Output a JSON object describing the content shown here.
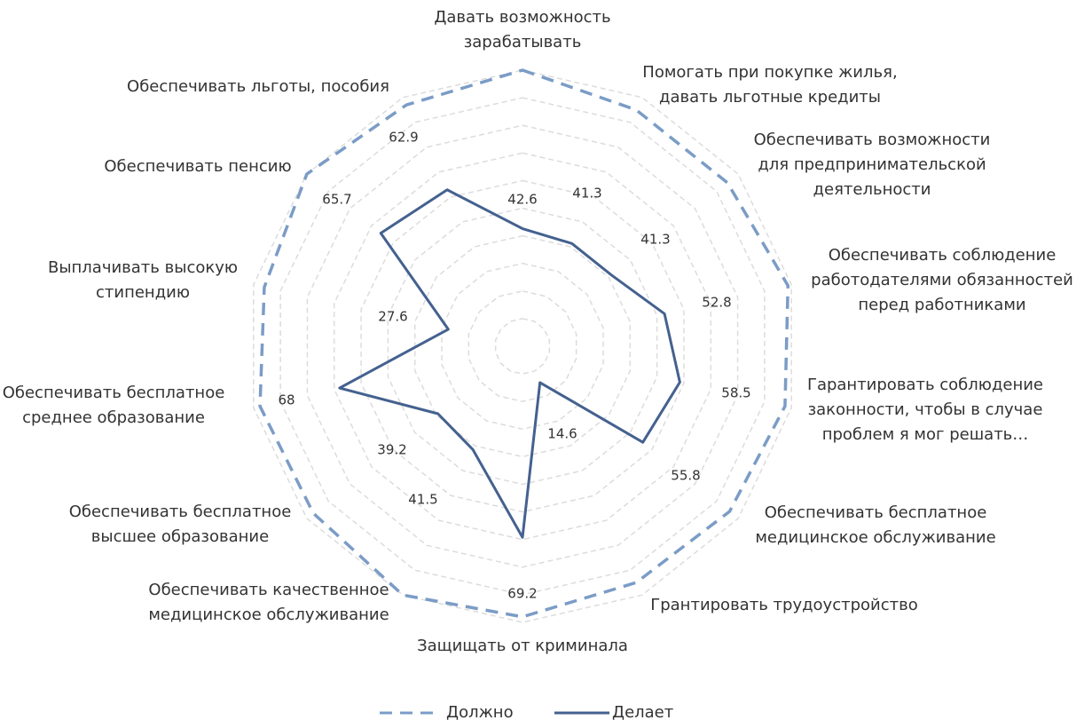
{
  "chart_data": {
    "type": "radar",
    "categories": [
      "Давать возможность\nзарабатывать",
      "Помогать при покупке жилья,\nдавать льготные кредиты",
      "Обеспечивать возможности\nдля предпринимательской\nдеятельности",
      "Обеспечивать соблюдение\nработодателями обязанностей\nперед работниками",
      "Гарантировать соблюдение\nзаконности, чтобы в случае\nпроблем я мог решать…",
      "Обеспечивать бесплатное\nмедицинское обслуживание",
      "Грантировать трудоустройство",
      "Защищать от криминала",
      "Обеспечивать качественное\nмедицинское обслуживание",
      "Обеспечивать бесплатное\nвысшее образование",
      "Обеспечивать бесплатное\nсреднее образование",
      "Выплачивать высокую\nстипендию",
      "Обеспечивать пенсию",
      "Обеспечивать льготы, пособия"
    ],
    "series": [
      {
        "name": "Должно",
        "color": "#7b9cc6",
        "dashed": true,
        "values": [
          100,
          95,
          95,
          98.7,
          97.6,
          96,
          95,
          98,
          100,
          97,
          97.6,
          96,
          100,
          97
        ]
      },
      {
        "name": "Делает",
        "color": "#44618f",
        "dashed": false,
        "show_labels": true,
        "values": [
          42.6,
          41.3,
          41.3,
          52.8,
          58.5,
          55.8,
          14.6,
          69.2,
          41.5,
          39.2,
          68,
          27.6,
          65.7,
          62.9
        ]
      }
    ],
    "ylim": [
      0,
      100
    ],
    "yticks": [
      10,
      20,
      30,
      40,
      50,
      60,
      70,
      80,
      90,
      100
    ],
    "grid": true,
    "legend": "bottom"
  }
}
